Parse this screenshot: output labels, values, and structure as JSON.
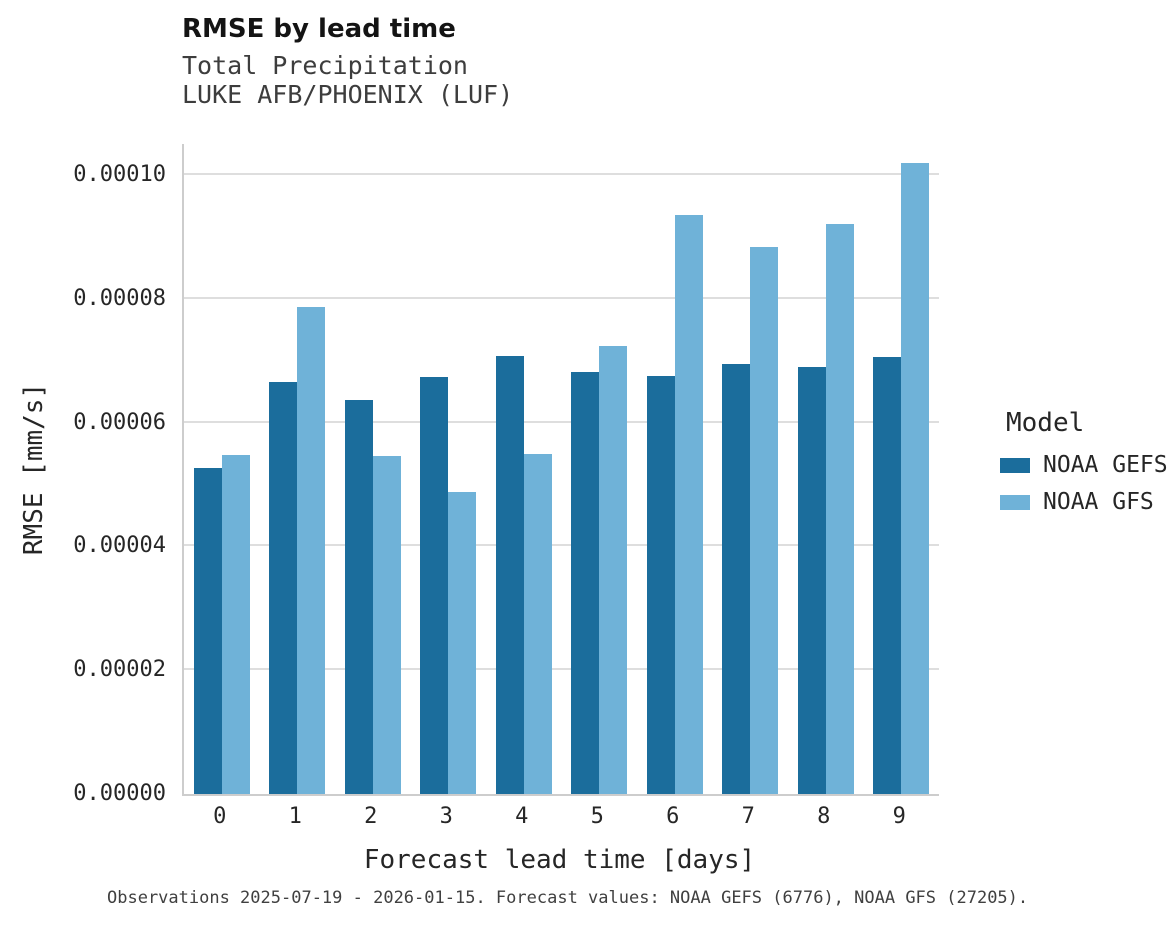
{
  "title": "RMSE by lead time",
  "subtitle_lines": [
    "Total Precipitation",
    "LUKE AFB/PHOENIX (LUF)"
  ],
  "footer": "Observations 2025-07-19 - 2026-01-15. Forecast values: NOAA GEFS (6776), NOAA GFS (27205).",
  "legend": {
    "title": "Model",
    "entries": [
      {
        "label": "NOAA GEFS",
        "color": "#1b6d9c"
      },
      {
        "label": "NOAA GFS",
        "color": "#6fb2d8"
      }
    ]
  },
  "colors": {
    "noaa_gefs": "#1b6d9c",
    "noaa_gfs": "#6fb2d8",
    "gridline": "#dedede",
    "axis_spine": "#cdcdcd"
  },
  "chart_data": {
    "type": "bar",
    "title": "RMSE by lead time",
    "subtitle": "Total Precipitation — LUKE AFB/PHOENIX (LUF)",
    "xlabel": "Forecast lead time [days]",
    "ylabel": "RMSE [mm/s]",
    "categories": [
      "0",
      "1",
      "2",
      "3",
      "4",
      "5",
      "6",
      "7",
      "8",
      "9"
    ],
    "series": [
      {
        "name": "NOAA GEFS",
        "color": "#1b6d9c",
        "values": [
          5.27e-05,
          6.66e-05,
          6.37e-05,
          6.73e-05,
          7.08e-05,
          6.81e-05,
          6.75e-05,
          6.95e-05,
          6.9e-05,
          7.06e-05
        ]
      },
      {
        "name": "NOAA GFS",
        "color": "#6fb2d8",
        "values": [
          5.48e-05,
          7.87e-05,
          5.46e-05,
          4.88e-05,
          5.5e-05,
          7.24e-05,
          9.36e-05,
          8.83e-05,
          9.21e-05,
          0.000102
        ]
      }
    ],
    "ylim": [
      0,
      0.000105
    ],
    "yticks": [
      0,
      2e-05,
      4e-05,
      6e-05,
      8e-05,
      0.0001
    ],
    "ytick_labels": [
      "0.00000",
      "0.00002",
      "0.00004",
      "0.00006",
      "0.00008",
      "0.00010"
    ],
    "grid": true,
    "legend_title": "Model",
    "legend_position": "right"
  }
}
